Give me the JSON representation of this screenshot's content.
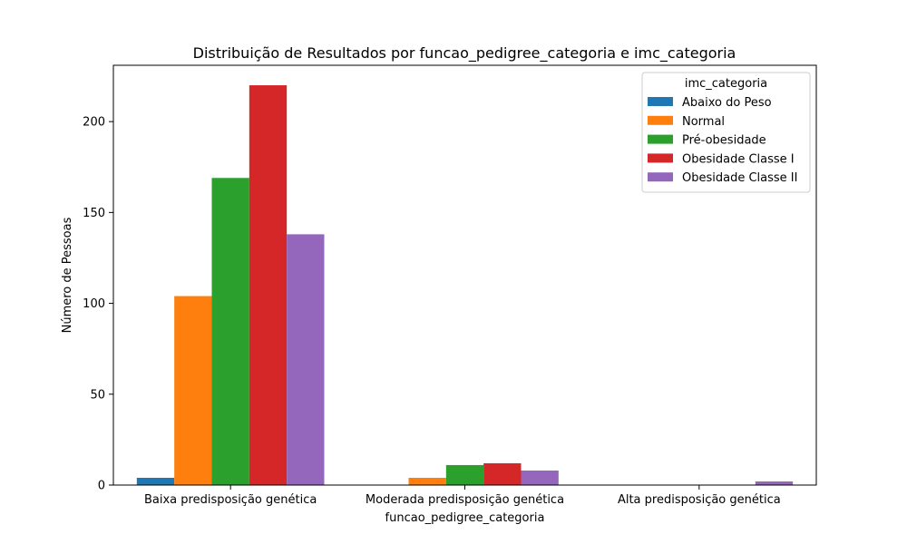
{
  "chart_data": {
    "type": "bar",
    "title": "Distribuição de Resultados por funcao_pedigree_categoria e imc_categoria",
    "xlabel": "funcao_pedigree_categoria",
    "ylabel": "Número de Pessoas",
    "categories": [
      "Baixa predisposição genética",
      "Moderada predisposição genética",
      "Alta predisposição genética"
    ],
    "ylim": [
      0,
      231
    ],
    "yticks": [
      0,
      50,
      100,
      150,
      200
    ],
    "grid": false,
    "legend": {
      "title": "imc_categoria",
      "position": "top-right"
    },
    "series": [
      {
        "name": "Abaixo do Peso",
        "color": "#1f77b4",
        "values": [
          4,
          0,
          0
        ]
      },
      {
        "name": "Normal",
        "color": "#ff7f0e",
        "values": [
          104,
          4,
          0
        ]
      },
      {
        "name": "Pré-obesidade",
        "color": "#2ca02c",
        "values": [
          169,
          11,
          0
        ]
      },
      {
        "name": "Obesidade Classe I",
        "color": "#d62728",
        "values": [
          220,
          12,
          0
        ]
      },
      {
        "name": "Obesidade Classe II",
        "color": "#9467bd",
        "values": [
          138,
          8,
          2
        ]
      }
    ]
  }
}
